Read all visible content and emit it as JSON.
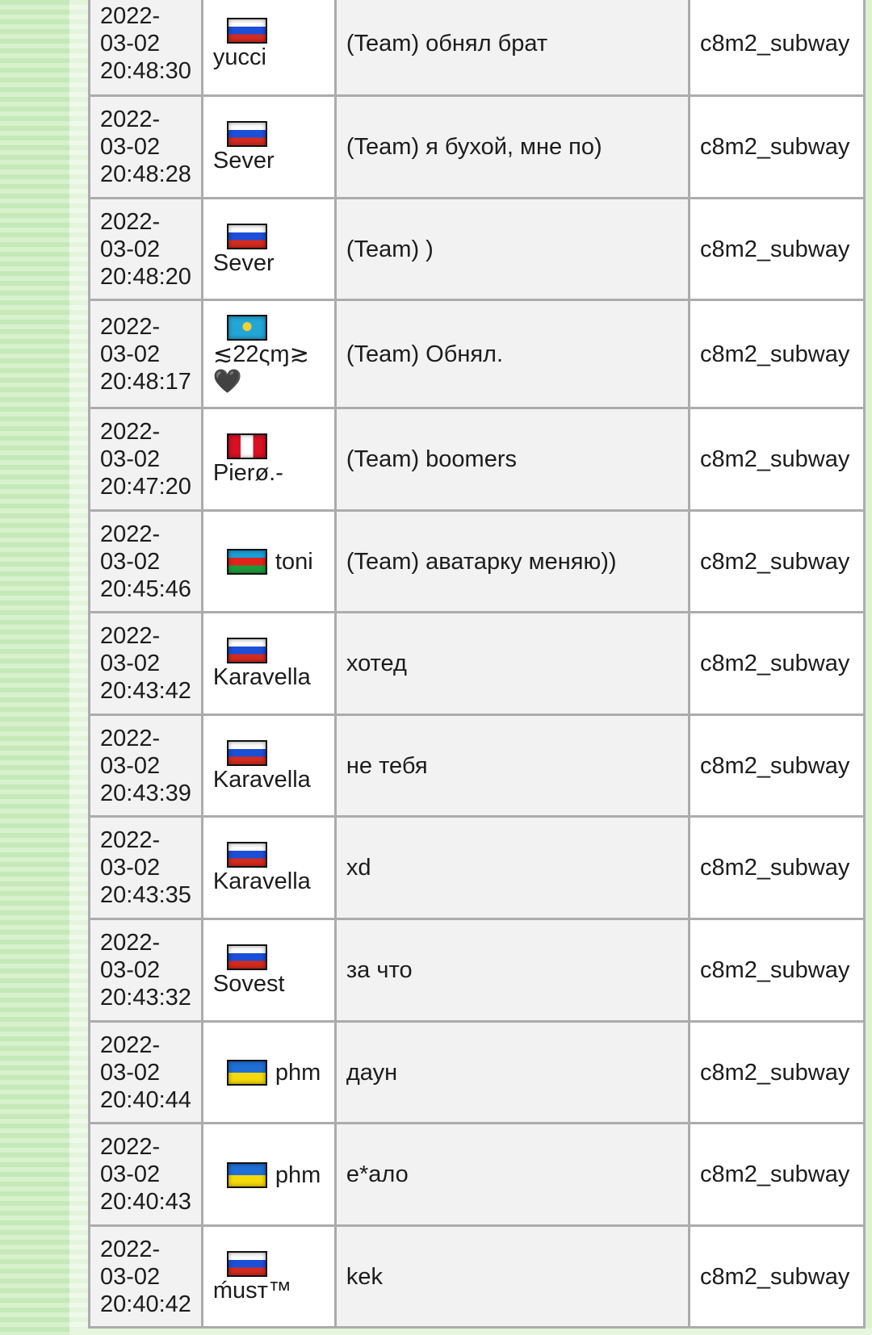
{
  "rows": [
    {
      "date": "2022-",
      "day": "03-02",
      "time": "20:48:30",
      "flag": "ru",
      "player": "yucci",
      "message": "(Team) обнял брат",
      "map": "c8m2_subway"
    },
    {
      "date": "2022-",
      "day": "03-02",
      "time": "20:48:28",
      "flag": "ru",
      "player": "Sever",
      "message": "(Team) я бухой, мне по)",
      "map": "c8m2_subway"
    },
    {
      "date": "2022-",
      "day": "03-02",
      "time": "20:48:20",
      "flag": "ru",
      "player": "Sever",
      "message": "(Team) )",
      "map": "c8m2_subway"
    },
    {
      "date": "2022-",
      "day": "03-02",
      "time": "20:48:17",
      "flag": "kz",
      "player": "≲22ςɱ≳ 🖤",
      "message": "(Team) Обнял.",
      "map": "c8m2_subway"
    },
    {
      "date": "2022-",
      "day": "03-02",
      "time": "20:47:20",
      "flag": "pe",
      "player": "Pierø.-",
      "message": "(Team) boomers",
      "map": "c8m2_subway"
    },
    {
      "date": "2022-",
      "day": "03-02",
      "time": "20:45:46",
      "flag": "az",
      "player": "toni",
      "message": "(Team) аватарку меняю))",
      "map": "c8m2_subway"
    },
    {
      "date": "2022-",
      "day": "03-02",
      "time": "20:43:42",
      "flag": "ru",
      "player": "Karavella",
      "message": "хотед",
      "map": "c8m2_subway"
    },
    {
      "date": "2022-",
      "day": "03-02",
      "time": "20:43:39",
      "flag": "ru",
      "player": "Karavella",
      "message": "не тебя",
      "map": "c8m2_subway"
    },
    {
      "date": "2022-",
      "day": "03-02",
      "time": "20:43:35",
      "flag": "ru",
      "player": "Karavella",
      "message": "xd",
      "map": "c8m2_subway"
    },
    {
      "date": "2022-",
      "day": "03-02",
      "time": "20:43:32",
      "flag": "ru",
      "player": "Sovest",
      "message": "за что",
      "map": "c8m2_subway"
    },
    {
      "date": "2022-",
      "day": "03-02",
      "time": "20:40:44",
      "flag": "ua",
      "player": "phm",
      "message": "даун",
      "map": "c8m2_subway"
    },
    {
      "date": "2022-",
      "day": "03-02",
      "time": "20:40:43",
      "flag": "ua",
      "player": "phm",
      "message": "е*ало",
      "map": "c8m2_subway"
    },
    {
      "date": "2022-",
      "day": "03-02",
      "time": "20:40:42",
      "flag": "ru",
      "player": "ḿusт™",
      "message": "kek",
      "map": "c8m2_subway"
    }
  ]
}
